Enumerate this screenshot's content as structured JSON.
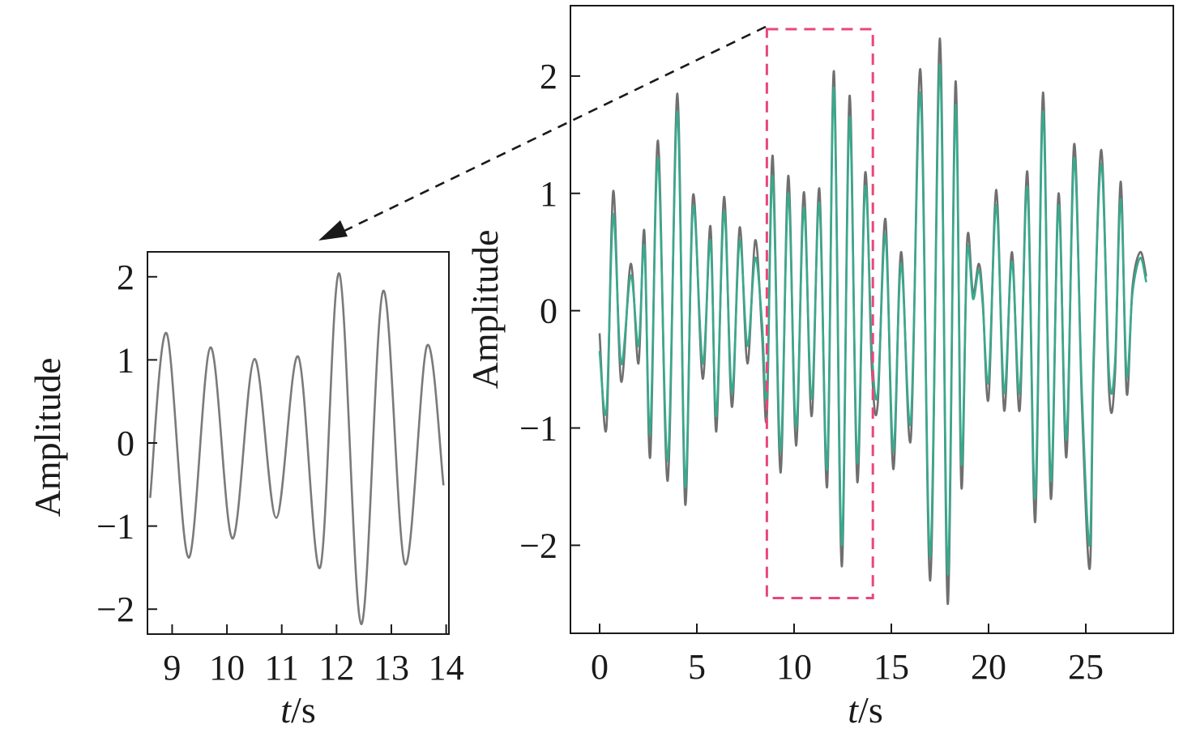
{
  "chart_data": [
    {
      "type": "line",
      "panel": "zoomed-inset",
      "xlabel_italic": "t",
      "xlabel_unit": "/s",
      "ylabel": "Amplitude",
      "xlim": [
        8.55,
        14.05
      ],
      "ylim": [
        -2.3,
        2.3
      ],
      "xticks": [
        9,
        10,
        11,
        12,
        13,
        14
      ],
      "yticks": [
        -2,
        -1,
        0,
        1,
        2
      ],
      "xtick_labels": [
        "9",
        "10",
        "11",
        "12",
        "13",
        "14"
      ],
      "ytick_labels": [
        "−2",
        "−1",
        "0",
        "1",
        "2"
      ],
      "series": [
        {
          "color": "#7a7a7a",
          "x": [
            8.6,
            8.9,
            9.3,
            9.7,
            10.1,
            10.5,
            10.9,
            11.3,
            11.7,
            12.05,
            12.45,
            12.85,
            13.25,
            13.65,
            13.95
          ],
          "y": [
            -0.65,
            1.32,
            -1.38,
            1.15,
            -1.15,
            1.01,
            -0.9,
            1.04,
            -1.5,
            2.04,
            -2.18,
            1.83,
            -1.46,
            1.17,
            -0.5
          ]
        }
      ]
    },
    {
      "type": "line",
      "panel": "full-signal",
      "xlabel_italic": "t",
      "xlabel_unit": "/s",
      "ylabel": "Amplitude",
      "xlim": [
        -1.5,
        29.5
      ],
      "ylim": [
        -2.75,
        2.6
      ],
      "xticks": [
        0,
        5,
        10,
        15,
        20,
        25
      ],
      "yticks": [
        -2,
        -1,
        0,
        1,
        2
      ],
      "xtick_labels": [
        "0",
        "5",
        "10",
        "15",
        "20",
        "25"
      ],
      "ytick_labels": [
        "−2",
        "−1",
        "0",
        "1",
        "2"
      ],
      "zoom_region": {
        "x": [
          8.6,
          14.05
        ],
        "y": [
          -2.45,
          2.4
        ]
      },
      "series": [
        {
          "color": "#6f6f6f",
          "x": [
            0,
            0.35,
            0.7,
            1.1,
            1.6,
            2.0,
            2.3,
            2.6,
            3.0,
            3.5,
            4.0,
            4.4,
            4.8,
            5.3,
            5.7,
            6.0,
            6.4,
            6.8,
            7.2,
            7.6,
            8.0,
            8.35,
            8.6,
            8.9,
            9.3,
            9.7,
            10.1,
            10.5,
            10.9,
            11.3,
            11.7,
            12.05,
            12.45,
            12.85,
            13.25,
            13.65,
            14.0,
            14.3,
            14.7,
            15.1,
            15.5,
            16.0,
            16.5,
            17.0,
            17.5,
            17.9,
            18.3,
            18.6,
            18.9,
            19.2,
            19.5,
            19.7,
            20.0,
            20.4,
            20.8,
            21.2,
            21.6,
            22.0,
            22.4,
            22.8,
            23.2,
            23.6,
            24.0,
            24.4,
            24.8,
            25.2,
            25.4,
            25.8,
            26.2,
            26.5,
            26.8,
            27.1,
            27.4,
            27.8,
            28.1
          ],
          "y": [
            -0.2,
            -1.0,
            1.02,
            -0.6,
            0.4,
            -0.45,
            0.68,
            -1.25,
            1.45,
            -1.45,
            1.85,
            -1.65,
            0.98,
            -0.58,
            0.72,
            -1.03,
            0.97,
            -0.82,
            0.71,
            -0.45,
            0.6,
            -0.2,
            -0.9,
            1.32,
            -1.38,
            1.15,
            -1.15,
            1.01,
            -0.9,
            1.04,
            -1.5,
            2.04,
            -2.18,
            1.83,
            -1.46,
            1.17,
            -0.5,
            -0.8,
            0.78,
            -1.35,
            0.5,
            -1.1,
            2.05,
            -2.3,
            2.32,
            -2.5,
            1.95,
            -1.5,
            0.6,
            0.15,
            0.4,
            0.1,
            -0.75,
            1.03,
            -0.85,
            0.5,
            -0.85,
            1.18,
            -1.8,
            1.86,
            -1.6,
            1.0,
            -1.25,
            1.42,
            -0.8,
            -2.2,
            -0.5,
            1.37,
            -0.7,
            -0.55,
            1.1,
            -0.7,
            0.2,
            0.5,
            0.3
          ]
        },
        {
          "color": "#3aa88c",
          "x": [
            0,
            0.35,
            0.7,
            1.1,
            1.6,
            2.0,
            2.3,
            2.6,
            3.0,
            3.5,
            4.0,
            4.4,
            4.8,
            5.3,
            5.7,
            6.0,
            6.4,
            6.8,
            7.2,
            7.6,
            8.0,
            8.35,
            8.6,
            8.9,
            9.3,
            9.7,
            10.1,
            10.5,
            10.9,
            11.3,
            11.7,
            12.05,
            12.45,
            12.85,
            13.25,
            13.65,
            14.0,
            14.3,
            14.7,
            15.1,
            15.5,
            16.0,
            16.5,
            17.0,
            17.5,
            17.9,
            18.3,
            18.6,
            18.9,
            19.2,
            19.5,
            19.7,
            20.0,
            20.4,
            20.8,
            21.2,
            21.6,
            22.0,
            22.4,
            22.8,
            23.2,
            23.6,
            24.0,
            24.4,
            24.8,
            25.2,
            25.4,
            25.8,
            26.2,
            26.5,
            26.8,
            27.1,
            27.4,
            27.8,
            28.1
          ],
          "y": [
            -0.35,
            -0.85,
            0.82,
            -0.45,
            0.3,
            -0.3,
            0.55,
            -1.05,
            1.3,
            -1.28,
            1.7,
            -1.5,
            0.88,
            -0.45,
            0.6,
            -0.9,
            0.85,
            -0.7,
            0.6,
            -0.3,
            0.45,
            -0.1,
            -0.75,
            1.15,
            -1.2,
            1.0,
            -1.0,
            0.88,
            -0.75,
            0.92,
            -1.35,
            1.9,
            -2.0,
            1.65,
            -1.3,
            1.05,
            -0.35,
            -0.7,
            0.65,
            -1.2,
            0.4,
            -0.95,
            1.85,
            -2.1,
            2.1,
            -2.25,
            1.75,
            -1.3,
            0.5,
            0.1,
            0.35,
            0.05,
            -0.6,
            0.9,
            -0.7,
            0.42,
            -0.7,
            1.05,
            -1.6,
            1.7,
            -1.45,
            0.9,
            -1.1,
            1.3,
            -0.7,
            -2.0,
            -0.4,
            1.25,
            -0.55,
            -0.45,
            0.95,
            -0.55,
            0.15,
            0.45,
            0.25
          ]
        }
      ]
    }
  ]
}
